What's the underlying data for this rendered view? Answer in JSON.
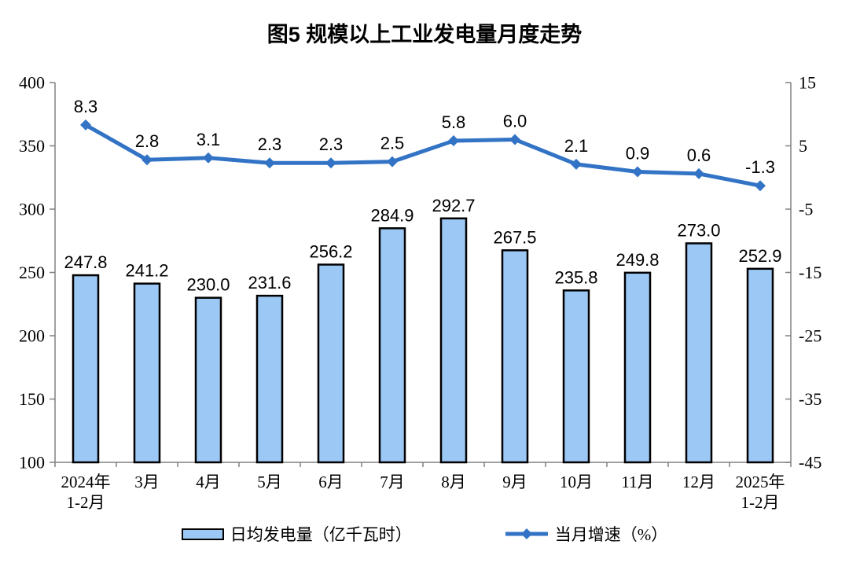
{
  "chart_data": {
    "type": "combo-bar-line",
    "title": "图5  规模以上工业发电量月度走势",
    "categories": [
      "2024年\n1-2月",
      "3月",
      "4月",
      "5月",
      "6月",
      "7月",
      "8月",
      "9月",
      "10月",
      "11月",
      "12月",
      "2025年\n1-2月"
    ],
    "series": [
      {
        "name": "日均发电量（亿千瓦时）",
        "type": "bar",
        "axis": "left",
        "values": [
          247.8,
          241.2,
          230.0,
          231.6,
          256.2,
          284.9,
          292.7,
          267.5,
          235.8,
          249.8,
          273.0,
          252.9
        ],
        "labels": [
          "247.8",
          "241.2",
          "230.0",
          "231.6",
          "256.2",
          "284.9",
          "292.7",
          "267.5",
          "235.8",
          "249.8",
          "273.0",
          "252.9"
        ]
      },
      {
        "name": "当月增速（%）",
        "type": "line",
        "axis": "right",
        "values": [
          8.3,
          2.8,
          3.1,
          2.3,
          2.3,
          2.5,
          5.8,
          6.0,
          2.1,
          0.9,
          0.6,
          -1.3
        ],
        "labels": [
          "8.3",
          "2.8",
          "3.1",
          "2.3",
          "2.3",
          "2.5",
          "5.8",
          "6.0",
          "2.1",
          "0.9",
          "0.6",
          "-1.3"
        ]
      }
    ],
    "left_axis": {
      "min": 100,
      "max": 400,
      "ticks": [
        100,
        150,
        200,
        250,
        300,
        350,
        400
      ]
    },
    "right_axis": {
      "min": -45,
      "max": 15,
      "ticks": [
        -45,
        -35,
        -25,
        -15,
        -5,
        5,
        15
      ]
    },
    "legend_position": "bottom",
    "grid": false,
    "colors": {
      "bar_fill": "#9CC8F5",
      "bar_border": "#000000",
      "line": "#3273C5",
      "axis": "#808080",
      "text": "#000000"
    }
  }
}
